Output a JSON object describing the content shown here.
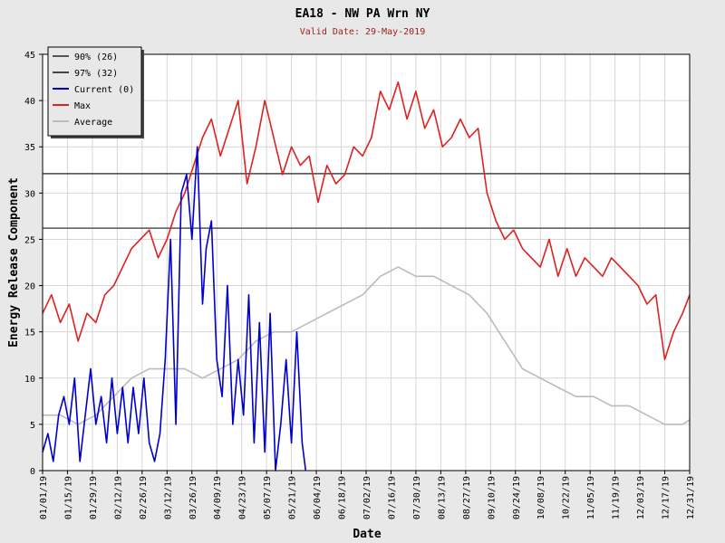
{
  "chart_data": {
    "type": "line",
    "title": "EA18 - NW PA Wrn NY",
    "subtitle": "Valid Date: 29-May-2019",
    "xlabel": "Date",
    "ylabel": "Energy Release Component",
    "ylim": [
      0,
      45
    ],
    "yticks": [
      "0",
      "5",
      "10",
      "15",
      "20",
      "25",
      "30",
      "35",
      "40",
      "45"
    ],
    "xlim": [
      "2019-01-01",
      "2019-12-31"
    ],
    "xticks": [
      "01/01/19",
      "01/15/19",
      "01/29/19",
      "02/12/19",
      "02/26/19",
      "03/12/19",
      "03/26/19",
      "04/09/19",
      "04/23/19",
      "05/07/19",
      "05/21/19",
      "06/04/19",
      "06/18/19",
      "07/02/19",
      "07/16/19",
      "07/30/19",
      "08/13/19",
      "08/27/19",
      "09/10/19",
      "09/24/19",
      "10/08/19",
      "10/22/19",
      "11/05/19",
      "11/19/19",
      "12/03/19",
      "12/17/19",
      "12/31/19"
    ],
    "grid": true,
    "legend_position": "top-left",
    "reference_lines": [
      {
        "name": "90% (26)",
        "value": 26.2,
        "color": "#555555"
      },
      {
        "name": "97% (32)",
        "value": 32.1,
        "color": "#444444"
      }
    ],
    "series": [
      {
        "name": "Current (0)",
        "color": "#0000cc",
        "x": [
          "2019-01-01",
          "2019-01-04",
          "2019-01-07",
          "2019-01-10",
          "2019-01-13",
          "2019-01-16",
          "2019-01-19",
          "2019-01-22",
          "2019-01-25",
          "2019-01-28",
          "2019-01-31",
          "2019-02-03",
          "2019-02-06",
          "2019-02-09",
          "2019-02-12",
          "2019-02-15",
          "2019-02-18",
          "2019-02-21",
          "2019-02-24",
          "2019-02-27",
          "2019-03-02",
          "2019-03-05",
          "2019-03-08",
          "2019-03-11",
          "2019-03-14",
          "2019-03-17",
          "2019-03-20",
          "2019-03-23",
          "2019-03-26",
          "2019-03-29",
          "2019-04-01",
          "2019-04-03",
          "2019-04-06",
          "2019-04-09",
          "2019-04-12",
          "2019-04-15",
          "2019-04-18",
          "2019-04-21",
          "2019-04-24",
          "2019-04-27",
          "2019-04-30",
          "2019-05-03",
          "2019-05-06",
          "2019-05-09",
          "2019-05-12",
          "2019-05-15",
          "2019-05-18",
          "2019-05-21",
          "2019-05-24",
          "2019-05-27",
          "2019-05-29"
        ],
        "values": [
          2,
          4,
          1,
          6,
          8,
          5,
          10,
          1,
          6,
          11,
          5,
          8,
          3,
          10,
          4,
          9,
          3,
          9,
          4,
          10,
          3,
          1,
          4,
          12,
          25,
          5,
          30,
          32,
          25,
          35,
          18,
          24,
          27,
          12,
          8,
          20,
          5,
          12,
          6,
          19,
          3,
          16,
          2,
          17,
          0,
          5,
          12,
          3,
          15,
          3,
          0
        ]
      },
      {
        "name": "Max",
        "color": "#dd2222",
        "x": [
          "2019-01-01",
          "2019-01-06",
          "2019-01-11",
          "2019-01-16",
          "2019-01-21",
          "2019-01-26",
          "2019-01-31",
          "2019-02-05",
          "2019-02-10",
          "2019-02-15",
          "2019-02-20",
          "2019-02-25",
          "2019-03-02",
          "2019-03-07",
          "2019-03-12",
          "2019-03-17",
          "2019-03-22",
          "2019-03-27",
          "2019-04-01",
          "2019-04-06",
          "2019-04-11",
          "2019-04-16",
          "2019-04-21",
          "2019-04-26",
          "2019-05-01",
          "2019-05-06",
          "2019-05-11",
          "2019-05-16",
          "2019-05-21",
          "2019-05-26",
          "2019-05-31",
          "2019-06-05",
          "2019-06-10",
          "2019-06-15",
          "2019-06-20",
          "2019-06-25",
          "2019-06-30",
          "2019-07-05",
          "2019-07-10",
          "2019-07-15",
          "2019-07-20",
          "2019-07-25",
          "2019-07-30",
          "2019-08-04",
          "2019-08-09",
          "2019-08-14",
          "2019-08-19",
          "2019-08-24",
          "2019-08-29",
          "2019-09-03",
          "2019-09-08",
          "2019-09-13",
          "2019-09-18",
          "2019-09-23",
          "2019-09-28",
          "2019-10-03",
          "2019-10-08",
          "2019-10-13",
          "2019-10-18",
          "2019-10-23",
          "2019-10-28",
          "2019-11-02",
          "2019-11-07",
          "2019-11-12",
          "2019-11-17",
          "2019-11-22",
          "2019-11-27",
          "2019-12-02",
          "2019-12-07",
          "2019-12-12",
          "2019-12-17",
          "2019-12-22",
          "2019-12-27",
          "2019-12-31"
        ],
        "values": [
          17,
          19,
          16,
          18,
          14,
          17,
          16,
          19,
          20,
          22,
          24,
          25,
          26,
          23,
          25,
          28,
          30,
          33,
          36,
          38,
          34,
          37,
          40,
          31,
          35,
          40,
          36,
          32,
          35,
          33,
          34,
          29,
          33,
          31,
          32,
          35,
          34,
          36,
          41,
          39,
          42,
          38,
          41,
          37,
          39,
          35,
          36,
          38,
          36,
          37,
          30,
          27,
          25,
          26,
          24,
          23,
          22,
          25,
          21,
          24,
          21,
          23,
          22,
          21,
          23,
          22,
          21,
          20,
          18,
          19,
          12,
          15,
          17,
          19
        ]
      },
      {
        "name": "Average",
        "color": "#bbbbbb",
        "x": [
          "2019-01-01",
          "2019-01-11",
          "2019-01-21",
          "2019-01-31",
          "2019-02-10",
          "2019-02-20",
          "2019-03-02",
          "2019-03-12",
          "2019-03-22",
          "2019-04-01",
          "2019-04-11",
          "2019-04-21",
          "2019-05-01",
          "2019-05-11",
          "2019-05-21",
          "2019-05-31",
          "2019-06-10",
          "2019-06-20",
          "2019-06-30",
          "2019-07-10",
          "2019-07-20",
          "2019-07-30",
          "2019-08-09",
          "2019-08-19",
          "2019-08-29",
          "2019-09-08",
          "2019-09-18",
          "2019-09-28",
          "2019-10-08",
          "2019-10-18",
          "2019-10-28",
          "2019-11-07",
          "2019-11-17",
          "2019-11-27",
          "2019-12-07",
          "2019-12-17",
          "2019-12-27",
          "2019-12-31"
        ],
        "values": [
          6,
          6,
          5,
          6,
          8,
          10,
          11,
          11,
          11,
          10,
          11,
          12,
          14,
          15,
          15,
          16,
          17,
          18,
          19,
          21,
          22,
          21,
          21,
          20,
          19,
          17,
          14,
          11,
          10,
          9,
          8,
          8,
          7,
          7,
          6,
          5,
          5,
          5.5
        ]
      }
    ]
  }
}
